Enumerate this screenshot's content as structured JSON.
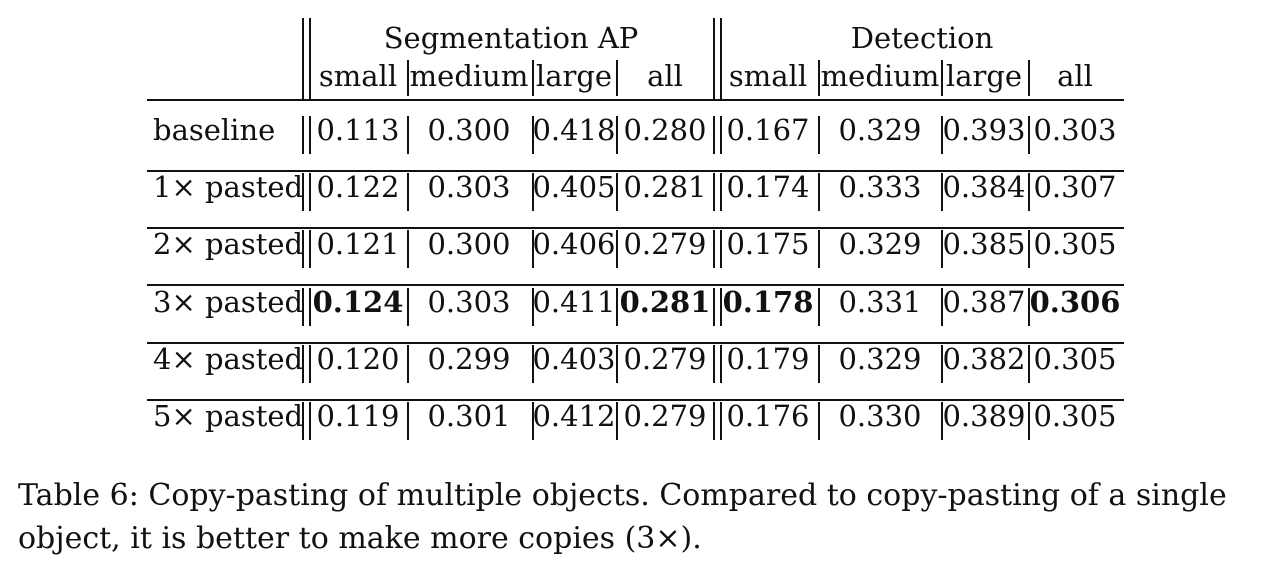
{
  "table": {
    "group_headers": [
      "Segmentation AP",
      "Detection"
    ],
    "sub_headers": [
      "small",
      "medium",
      "large",
      "all",
      "small",
      "medium",
      "large",
      "all"
    ],
    "rows": [
      {
        "label": "baseline",
        "values": [
          "0.113",
          "0.300",
          "0.418",
          "0.280",
          "0.167",
          "0.329",
          "0.393",
          "0.303"
        ],
        "bold": [
          false,
          false,
          false,
          false,
          false,
          false,
          false,
          false
        ]
      },
      {
        "label": "1× pasted",
        "values": [
          "0.122",
          "0.303",
          "0.405",
          "0.281",
          "0.174",
          "0.333",
          "0.384",
          "0.307"
        ],
        "bold": [
          false,
          false,
          false,
          false,
          false,
          false,
          false,
          false
        ]
      },
      {
        "label": "2× pasted",
        "values": [
          "0.121",
          "0.300",
          "0.406",
          "0.279",
          "0.175",
          "0.329",
          "0.385",
          "0.305"
        ],
        "bold": [
          false,
          false,
          false,
          false,
          false,
          false,
          false,
          false
        ]
      },
      {
        "label": "3× pasted",
        "values": [
          "0.124",
          "0.303",
          "0.411",
          "0.281",
          "0.178",
          "0.331",
          "0.387",
          "0.306"
        ],
        "bold": [
          true,
          false,
          false,
          true,
          true,
          false,
          false,
          true
        ]
      },
      {
        "label": "4× pasted",
        "values": [
          "0.120",
          "0.299",
          "0.403",
          "0.279",
          "0.179",
          "0.329",
          "0.382",
          "0.305"
        ],
        "bold": [
          false,
          false,
          false,
          false,
          false,
          false,
          false,
          false
        ]
      },
      {
        "label": "5× pasted",
        "values": [
          "0.119",
          "0.301",
          "0.412",
          "0.279",
          "0.176",
          "0.330",
          "0.389",
          "0.305"
        ],
        "bold": [
          false,
          false,
          false,
          false,
          false,
          false,
          false,
          false
        ]
      }
    ]
  },
  "caption": "Table 6: Copy-pasting of multiple objects. Compared to copy-pasting of a single object, it is better to make more copies (3×)."
}
